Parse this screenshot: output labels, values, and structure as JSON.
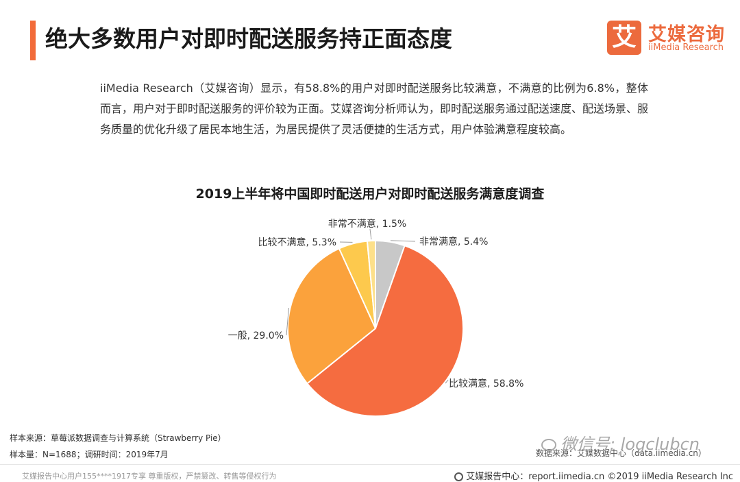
{
  "header": {
    "title": "绝大多数用户对即时配送服务持正面态度",
    "logo_badge": "艾",
    "logo_cn": "艾媒咨询",
    "logo_en": "iiMedia Research"
  },
  "intro": "iiMedia Research（艾媒咨询）显示，有58.8%的用户对即时配送服务比较满意，不满意的比例为6.8%，整体而言，用户对于即时配送服务的评价较为正面。艾媒咨询分析师认为，即时配送服务通过配送速度、配送场景、服务质量的优化升级了居民本地生活，为居民提供了灵活便捷的生活方式，用户体验满意程度较高。",
  "chart_data": {
    "type": "pie",
    "title": "2019上半年将中国即时配送用户对即时配送服务满意度调查",
    "slices": [
      {
        "label": "非常满意",
        "value": 5.4,
        "display": "非常满意, 5.4%",
        "color": "#c8c8c8"
      },
      {
        "label": "比较满意",
        "value": 58.8,
        "display": "比较满意, 58.8%",
        "color": "#f56c40"
      },
      {
        "label": "一般",
        "value": 29.0,
        "display": "一般, 29.0%",
        "color": "#fba23c"
      },
      {
        "label": "比较不满意",
        "value": 5.3,
        "display": "比较不满意, 5.3%",
        "color": "#fdc94d"
      },
      {
        "label": "非常不满意",
        "value": 1.5,
        "display": "非常不满意, 1.5%",
        "color": "#fde08a"
      }
    ]
  },
  "footer": {
    "source": "样本来源：草莓派数据调查与计算系统（Strawberry Pie）",
    "sample": "样本量：N=1688；调研时间：2019年7月",
    "data_source": "数据来源：艾媒数据中心（data.iimedia.cn）",
    "watermark": "微信号: logclubcn",
    "copyright_user": "艾媒报告中心用户155****1917专享 尊重版权，严禁篡改、转售等侵权行为",
    "report_center": "艾媒报告中心：report.iimedia.cn ©2019 iiMedia Research Inc"
  }
}
